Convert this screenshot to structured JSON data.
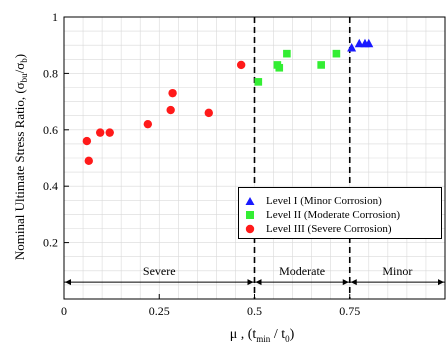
{
  "chart_data": {
    "type": "scatter",
    "xlabel": "μ , (t",
    "xlabel_sub1": "min",
    "xlabel_mid": " / t",
    "xlabel_sub2": "0",
    "xlabel_end": ")",
    "ylabel": "Nominal Ultimate Stress Ratio, (σ",
    "ylabel_sub1": "bu",
    "ylabel_mid": "/σ",
    "ylabel_sub2": "b",
    "ylabel_end": ")",
    "xlim": [
      0,
      1
    ],
    "ylim": [
      0,
      1
    ],
    "x_ticks": [
      0,
      0.25,
      0.5,
      0.75
    ],
    "x_tick_labels": [
      "0",
      "0.25",
      "0.5",
      "0.75"
    ],
    "y_ticks": [
      0.2,
      0.4,
      0.6,
      0.8,
      1
    ],
    "y_tick_labels": [
      "0.2",
      "0.4",
      "0.6",
      "0.8",
      "1"
    ],
    "grid": true,
    "vertical_lines": [
      0.5,
      0.75
    ],
    "regions": [
      {
        "label": "Severe",
        "x_from": 0,
        "x_to": 0.5
      },
      {
        "label": "Moderate",
        "x_from": 0.5,
        "x_to": 0.75
      },
      {
        "label": "Minor",
        "x_from": 0.75,
        "x_to": 1
      }
    ],
    "region_y": 0.06,
    "legend_position": "lower-right",
    "series": [
      {
        "name": "Level I  (Minor Corrosion)",
        "marker": "triangle",
        "color": "#1a1aff",
        "points": [
          [
            0.755,
            0.89
          ],
          [
            0.775,
            0.905
          ],
          [
            0.79,
            0.905
          ],
          [
            0.8,
            0.905
          ]
        ]
      },
      {
        "name": "Level II  (Moderate Corrosion)",
        "marker": "square",
        "color": "#33ee33",
        "points": [
          [
            0.51,
            0.77
          ],
          [
            0.56,
            0.83
          ],
          [
            0.565,
            0.82
          ],
          [
            0.585,
            0.87
          ],
          [
            0.675,
            0.83
          ],
          [
            0.715,
            0.87
          ]
        ]
      },
      {
        "name": "Level III  (Severe Corrosion)",
        "marker": "circle",
        "color": "#ff1a1a",
        "points": [
          [
            0.06,
            0.56
          ],
          [
            0.065,
            0.49
          ],
          [
            0.095,
            0.59
          ],
          [
            0.12,
            0.59
          ],
          [
            0.22,
            0.62
          ],
          [
            0.28,
            0.67
          ],
          [
            0.285,
            0.73
          ],
          [
            0.38,
            0.66
          ],
          [
            0.465,
            0.83
          ]
        ]
      }
    ]
  }
}
